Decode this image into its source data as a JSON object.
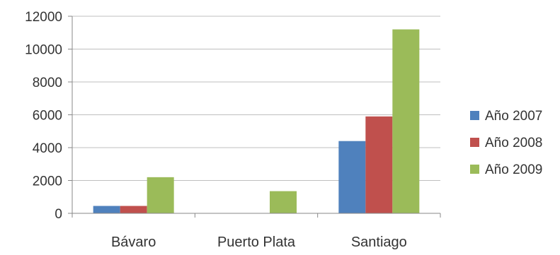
{
  "chart_data": {
    "type": "bar",
    "title": "",
    "xlabel": "",
    "ylabel": "",
    "categories": [
      "Bávaro",
      "Puerto Plata",
      "Santiago"
    ],
    "series": [
      {
        "name": "Año 2007",
        "color": "#4f81bd",
        "values": [
          450,
          0,
          4400
        ]
      },
      {
        "name": "Año 2008",
        "color": "#c0504d",
        "values": [
          450,
          0,
          5900
        ]
      },
      {
        "name": "Año 2009",
        "color": "#9bbb59",
        "values": [
          2200,
          1350,
          11200
        ]
      }
    ],
    "ylim": [
      0,
      12000
    ],
    "yticks": [
      0,
      2000,
      4000,
      6000,
      8000,
      10000,
      12000
    ],
    "grid": true,
    "legend_position": "right"
  }
}
